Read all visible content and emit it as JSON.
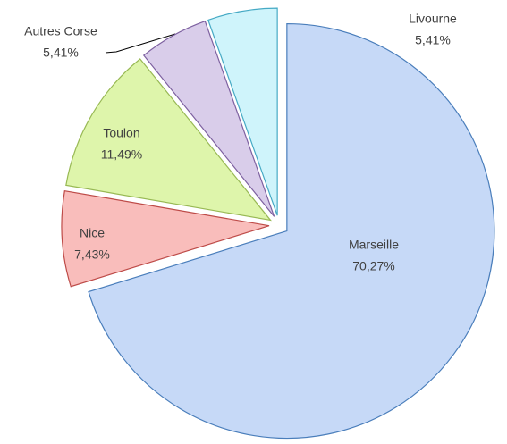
{
  "chart_data": {
    "type": "pie",
    "categories": [
      "Marseille",
      "Nice",
      "Toulon",
      "Autres Corse",
      "Livourne"
    ],
    "values": [
      70.27,
      7.43,
      11.49,
      5.41,
      5.41
    ],
    "value_labels": [
      "70,27%",
      "7,43%",
      "11,49%",
      "5,41%",
      "5,41%"
    ],
    "colors": [
      "#c6d9f7",
      "#f9bdbb",
      "#def5ab",
      "#d9cdea",
      "#cff4fb"
    ],
    "stroke_colors": [
      "#4a7ebb",
      "#be4b48",
      "#98b954",
      "#7d60a0",
      "#46aac5"
    ]
  }
}
